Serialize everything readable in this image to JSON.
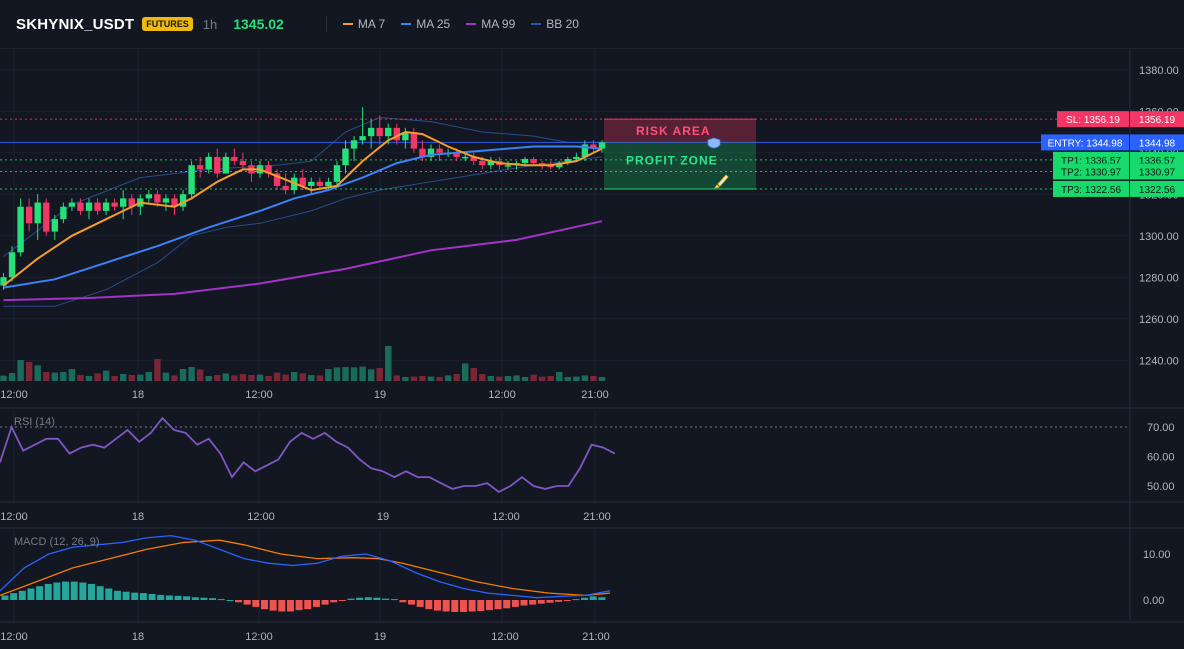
{
  "header": {
    "symbol": "SKHYNIX_USDT",
    "badge": "FUTURES",
    "timeframe": "1h",
    "price": "1345.02",
    "legend": [
      {
        "label": "MA 7",
        "color": "#f59e2b"
      },
      {
        "label": "MA 25",
        "color": "#3b82f6"
      },
      {
        "label": "MA 99",
        "color": "#a233c4"
      },
      {
        "label": "BB 20",
        "color": "#2f5aa8"
      }
    ]
  },
  "chart_data": {
    "type": "candlestick",
    "price_axis": {
      "min": 1230,
      "max": 1390,
      "ticks": [
        "1380.00",
        "1360.00",
        "1340.00",
        "1320.00",
        "1300.00",
        "1280.00",
        "1260.00",
        "1240.00"
      ]
    },
    "time_ticks": [
      "12:00",
      "18",
      "12:00",
      "19",
      "12:00",
      "21:00"
    ],
    "candles": [
      [
        1276,
        1282,
        1274,
        1280
      ],
      [
        1280,
        1295,
        1278,
        1292
      ],
      [
        1292,
        1318,
        1290,
        1314
      ],
      [
        1314,
        1318,
        1302,
        1306
      ],
      [
        1306,
        1320,
        1298,
        1316
      ],
      [
        1316,
        1318,
        1300,
        1302
      ],
      [
        1302,
        1310,
        1298,
        1308
      ],
      [
        1308,
        1316,
        1306,
        1314
      ],
      [
        1314,
        1318,
        1312,
        1316
      ],
      [
        1316,
        1318,
        1310,
        1312
      ],
      [
        1312,
        1318,
        1308,
        1316
      ],
      [
        1316,
        1318,
        1310,
        1312
      ],
      [
        1312,
        1318,
        1310,
        1316
      ],
      [
        1316,
        1318,
        1312,
        1314
      ],
      [
        1314,
        1322,
        1308,
        1318
      ],
      [
        1318,
        1320,
        1310,
        1314
      ],
      [
        1314,
        1320,
        1310,
        1318
      ],
      [
        1318,
        1322,
        1316,
        1320
      ],
      [
        1320,
        1322,
        1314,
        1316
      ],
      [
        1316,
        1320,
        1312,
        1318
      ],
      [
        1318,
        1320,
        1310,
        1314
      ],
      [
        1314,
        1322,
        1312,
        1320
      ],
      [
        1320,
        1336,
        1318,
        1334
      ],
      [
        1334,
        1338,
        1328,
        1332
      ],
      [
        1332,
        1340,
        1330,
        1338
      ],
      [
        1338,
        1342,
        1328,
        1330
      ],
      [
        1330,
        1340,
        1330,
        1338
      ],
      [
        1338,
        1342,
        1334,
        1336
      ],
      [
        1336,
        1340,
        1332,
        1334
      ],
      [
        1334,
        1336,
        1326,
        1330
      ],
      [
        1330,
        1336,
        1328,
        1334
      ],
      [
        1334,
        1336,
        1328,
        1330
      ],
      [
        1330,
        1332,
        1322,
        1324
      ],
      [
        1324,
        1330,
        1320,
        1322
      ],
      [
        1322,
        1330,
        1320,
        1328
      ],
      [
        1328,
        1332,
        1322,
        1324
      ],
      [
        1324,
        1328,
        1320,
        1326
      ],
      [
        1326,
        1328,
        1322,
        1324
      ],
      [
        1324,
        1328,
        1322,
        1326
      ],
      [
        1326,
        1336,
        1324,
        1334
      ],
      [
        1334,
        1346,
        1330,
        1342
      ],
      [
        1342,
        1348,
        1336,
        1346
      ],
      [
        1346,
        1362,
        1344,
        1348
      ],
      [
        1348,
        1356,
        1342,
        1352
      ],
      [
        1352,
        1358,
        1344,
        1348
      ],
      [
        1348,
        1354,
        1344,
        1352
      ],
      [
        1352,
        1354,
        1344,
        1346
      ],
      [
        1346,
        1352,
        1342,
        1350
      ],
      [
        1350,
        1352,
        1340,
        1342
      ],
      [
        1342,
        1346,
        1336,
        1338
      ],
      [
        1338,
        1344,
        1336,
        1342
      ],
      [
        1342,
        1344,
        1336,
        1340
      ],
      [
        1340,
        1342,
        1338,
        1340
      ],
      [
        1340,
        1342,
        1336,
        1338
      ],
      [
        1338,
        1340,
        1336,
        1338
      ],
      [
        1338,
        1340,
        1334,
        1336
      ],
      [
        1336,
        1338,
        1332,
        1334
      ],
      [
        1334,
        1338,
        1332,
        1336
      ],
      [
        1336,
        1338,
        1332,
        1334
      ],
      [
        1334,
        1336,
        1332,
        1334
      ],
      [
        1334,
        1336,
        1332,
        1335
      ],
      [
        1335,
        1338,
        1334,
        1337
      ],
      [
        1337,
        1338,
        1334,
        1335
      ],
      [
        1335,
        1336,
        1332,
        1334
      ],
      [
        1334,
        1336,
        1332,
        1333
      ],
      [
        1333,
        1336,
        1332,
        1335
      ],
      [
        1335,
        1338,
        1334,
        1337
      ],
      [
        1337,
        1340,
        1336,
        1338
      ],
      [
        1338,
        1346,
        1336,
        1344
      ],
      [
        1344,
        1346,
        1340,
        1342
      ],
      [
        1342,
        1346,
        1340,
        1345
      ]
    ],
    "volume_ratio": [
      0.17,
      0.3,
      0.95,
      0.85,
      0.68,
      0.35,
      0.32,
      0.35,
      0.5,
      0.2,
      0.15,
      0.28,
      0.42,
      0.15,
      0.25,
      0.2,
      0.22,
      0.35,
      1.0,
      0.32,
      0.18,
      0.5,
      0.6,
      0.48,
      0.15,
      0.2,
      0.28,
      0.18,
      0.25,
      0.2,
      0.22,
      0.15,
      0.32,
      0.22,
      0.35,
      0.28,
      0.2,
      0.18,
      0.5,
      0.58,
      0.6,
      0.58,
      0.62,
      0.48,
      0.55,
      1.65,
      0.18,
      0.1,
      0.12,
      0.15,
      0.12,
      0.1,
      0.18,
      0.25,
      0.78,
      0.55,
      0.25,
      0.15,
      0.12,
      0.15,
      0.18,
      0.1,
      0.22,
      0.12,
      0.15,
      0.35,
      0.1,
      0.12,
      0.18,
      0.15,
      0.1
    ],
    "ma7": [
      [
        0,
        1276
      ],
      [
        4,
        1289
      ],
      [
        8,
        1300
      ],
      [
        12,
        1308
      ],
      [
        16,
        1316
      ],
      [
        20,
        1314
      ],
      [
        22,
        1318
      ],
      [
        25,
        1326
      ],
      [
        28,
        1332
      ],
      [
        30,
        1332
      ],
      [
        33,
        1327
      ],
      [
        36,
        1322
      ],
      [
        39,
        1324
      ],
      [
        42,
        1336
      ],
      [
        45,
        1346
      ],
      [
        47,
        1350
      ],
      [
        49,
        1349
      ],
      [
        52,
        1343
      ],
      [
        55,
        1338
      ],
      [
        58,
        1335
      ],
      [
        61,
        1334
      ],
      [
        64,
        1334
      ],
      [
        67,
        1336
      ],
      [
        70,
        1342
      ]
    ],
    "ma25": [
      [
        0,
        1275
      ],
      [
        6,
        1279
      ],
      [
        12,
        1287
      ],
      [
        18,
        1295
      ],
      [
        24,
        1304
      ],
      [
        30,
        1312
      ],
      [
        34,
        1318
      ],
      [
        38,
        1322
      ],
      [
        42,
        1328
      ],
      [
        46,
        1335
      ],
      [
        50,
        1339
      ],
      [
        56,
        1341
      ],
      [
        62,
        1343
      ],
      [
        67,
        1343
      ],
      [
        70,
        1342
      ]
    ],
    "ma99": [
      [
        0,
        1269
      ],
      [
        10,
        1270
      ],
      [
        20,
        1272
      ],
      [
        30,
        1277
      ],
      [
        40,
        1284
      ],
      [
        50,
        1293
      ],
      [
        60,
        1298
      ],
      [
        70,
        1307
      ]
    ],
    "bb_upper": [
      [
        0,
        1290
      ],
      [
        8,
        1315
      ],
      [
        16,
        1328
      ],
      [
        24,
        1332
      ],
      [
        32,
        1334
      ],
      [
        36,
        1336
      ],
      [
        40,
        1350
      ],
      [
        44,
        1357
      ],
      [
        50,
        1355
      ],
      [
        56,
        1350
      ],
      [
        62,
        1348
      ],
      [
        66,
        1345
      ],
      [
        70,
        1345
      ]
    ],
    "bb_lower": [
      [
        0,
        1266
      ],
      [
        6,
        1266
      ],
      [
        12,
        1274
      ],
      [
        18,
        1287
      ],
      [
        22,
        1300
      ],
      [
        26,
        1304
      ],
      [
        30,
        1306
      ],
      [
        36,
        1312
      ],
      [
        40,
        1318
      ],
      [
        44,
        1322
      ],
      [
        50,
        1326
      ],
      [
        56,
        1330
      ],
      [
        62,
        1334
      ],
      [
        66,
        1336
      ],
      [
        70,
        1338
      ]
    ],
    "levels": [
      {
        "label": "SL: 1356.19",
        "value": 1356.19,
        "axis_label": "1356.19",
        "color": "#f23665"
      },
      {
        "label": "ENTRY: 1344.98",
        "value": 1344.98,
        "axis_label": "1344.98",
        "color": "#2962ff"
      },
      {
        "label": "TP1: 1336.57",
        "value": 1336.57,
        "axis_label": "1336.57",
        "color": "#18d96b"
      },
      {
        "label": "TP2: 1330.97",
        "value": 1330.97,
        "axis_label": "1330.97",
        "color": "#18d96b"
      },
      {
        "label": "TP3: 1322.56",
        "value": 1322.56,
        "axis_label": "1322.56",
        "color": "#18d96b"
      }
    ],
    "risk_zone_label": "RISK AREA",
    "profit_zone_label": "PROFIT ZONE",
    "rsi": {
      "label": "RSI (14)",
      "ticks": [
        "70.00",
        "60.00",
        "50.00"
      ],
      "values": [
        [
          0,
          58
        ],
        [
          2,
          70
        ],
        [
          4,
          62
        ],
        [
          6,
          64
        ],
        [
          8,
          66
        ],
        [
          10,
          66
        ],
        [
          12,
          61
        ],
        [
          14,
          63
        ],
        [
          16,
          64
        ],
        [
          18,
          63
        ],
        [
          20,
          66
        ],
        [
          22,
          69
        ],
        [
          24,
          65
        ],
        [
          26,
          68
        ],
        [
          28,
          73
        ],
        [
          30,
          69
        ],
        [
          32,
          68
        ],
        [
          34,
          64
        ],
        [
          36,
          66
        ],
        [
          38,
          61
        ],
        [
          40,
          53
        ],
        [
          42,
          58
        ],
        [
          44,
          55
        ],
        [
          46,
          57
        ],
        [
          48,
          59
        ],
        [
          50,
          65
        ],
        [
          52,
          68
        ],
        [
          54,
          66
        ],
        [
          56,
          68
        ],
        [
          58,
          65
        ],
        [
          60,
          63
        ],
        [
          62,
          59
        ],
        [
          64,
          56
        ],
        [
          66,
          55
        ],
        [
          68,
          53
        ],
        [
          70,
          55
        ],
        [
          72,
          53
        ],
        [
          74,
          53
        ],
        [
          76,
          51
        ],
        [
          78,
          49
        ],
        [
          80,
          50
        ],
        [
          82,
          50
        ],
        [
          84,
          51
        ],
        [
          86,
          48
        ],
        [
          88,
          50
        ],
        [
          90,
          53
        ],
        [
          92,
          50
        ],
        [
          94,
          49
        ],
        [
          96,
          50
        ],
        [
          98,
          50
        ],
        [
          100,
          56
        ],
        [
          102,
          64
        ],
        [
          104,
          63
        ],
        [
          106,
          61
        ]
      ]
    },
    "macd": {
      "label": "MACD (12, 26, 9)",
      "ticks": [
        "10.00",
        "0.00"
      ],
      "macd_line": [
        [
          0,
          2
        ],
        [
          4,
          7
        ],
        [
          8,
          10
        ],
        [
          12,
          11.5
        ],
        [
          16,
          12
        ],
        [
          20,
          12.5
        ],
        [
          24,
          13.5
        ],
        [
          28,
          14
        ],
        [
          32,
          13
        ],
        [
          36,
          11
        ],
        [
          40,
          9
        ],
        [
          44,
          8
        ],
        [
          48,
          7.5
        ],
        [
          52,
          8
        ],
        [
          56,
          9.5
        ],
        [
          60,
          10
        ],
        [
          64,
          8.5
        ],
        [
          68,
          6
        ],
        [
          72,
          4
        ],
        [
          76,
          2.5
        ],
        [
          80,
          1.5
        ],
        [
          84,
          1
        ],
        [
          88,
          0.5
        ],
        [
          92,
          0.8
        ],
        [
          96,
          1
        ],
        [
          100,
          2
        ]
      ],
      "signal_line": [
        [
          0,
          1
        ],
        [
          6,
          4
        ],
        [
          12,
          7
        ],
        [
          18,
          9
        ],
        [
          24,
          11
        ],
        [
          30,
          12.5
        ],
        [
          36,
          13
        ],
        [
          40,
          12
        ],
        [
          46,
          10
        ],
        [
          52,
          9
        ],
        [
          58,
          9.2
        ],
        [
          62,
          9
        ],
        [
          66,
          8
        ],
        [
          72,
          6
        ],
        [
          78,
          4
        ],
        [
          84,
          2.5
        ],
        [
          90,
          1.5
        ],
        [
          96,
          1
        ],
        [
          100,
          1.5
        ]
      ],
      "histogram": [
        1,
        1.5,
        2,
        2.5,
        3,
        3.5,
        3.8,
        4,
        4,
        3.8,
        3.5,
        3,
        2.5,
        2,
        1.8,
        1.6,
        1.5,
        1.3,
        1.1,
        1,
        0.9,
        0.8,
        0.6,
        0.5,
        0.4,
        0.2,
        0,
        -0.5,
        -1,
        -1.5,
        -2,
        -2.3,
        -2.5,
        -2.5,
        -2.2,
        -2,
        -1.5,
        -1,
        -0.5,
        -0.2,
        0.3,
        0.5,
        0.6,
        0.5,
        0.3,
        0.2,
        -0.5,
        -1,
        -1.5,
        -2,
        -2.3,
        -2.5,
        -2.6,
        -2.6,
        -2.5,
        -2.4,
        -2.2,
        -2,
        -1.8,
        -1.5,
        -1.2,
        -1,
        -0.8,
        -0.6,
        -0.4,
        -0.2,
        0.2,
        0.5,
        0.8,
        0.6
      ]
    }
  }
}
